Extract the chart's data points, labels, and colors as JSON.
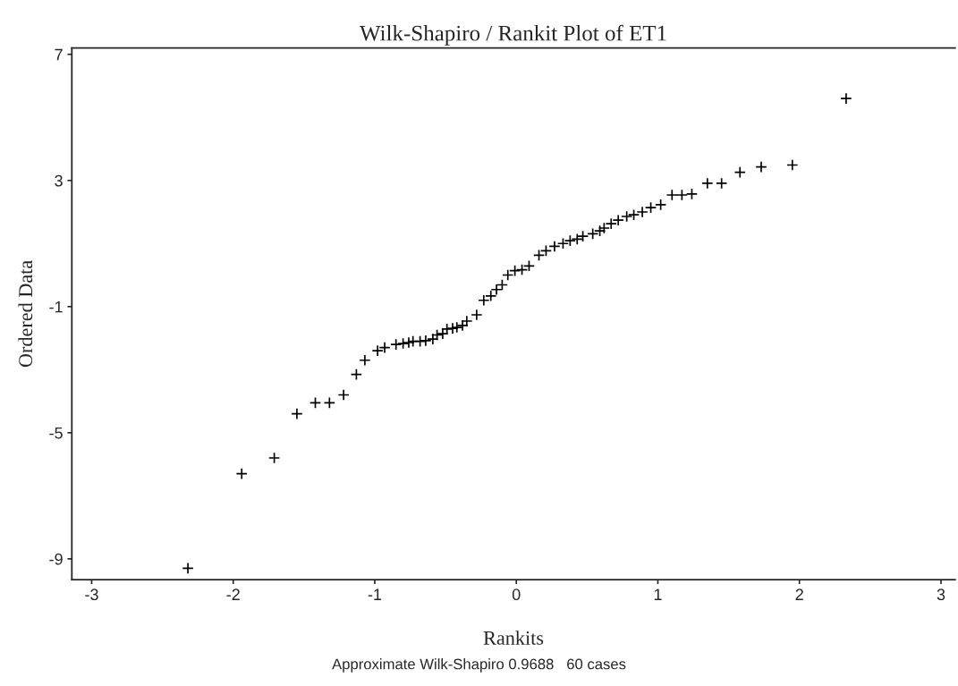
{
  "chart_data": {
    "type": "scatter",
    "title": "Wilk-Shapiro / Rankit Plot of ET1",
    "xlabel": "Rankits",
    "ylabel": "Ordered Data",
    "annotations": [
      "Approximate Wilk-Shapiro 0.9688   60 cases"
    ],
    "marker": "cross",
    "grid": false,
    "xlim": [
      -3.14,
      3.1
    ],
    "xticks": [
      -3,
      -2,
      -1,
      0,
      1,
      2,
      3
    ],
    "ylim": [
      -9.66,
      7.2
    ],
    "yticks": [
      -9,
      -5,
      -1,
      3,
      7
    ],
    "series": [
      {
        "color": "#000000",
        "x": [
          -2.32,
          -1.94,
          -1.71,
          -1.55,
          -1.42,
          -1.32,
          -1.22,
          -1.13,
          -1.07,
          -0.98,
          -0.93,
          -0.85,
          -0.8,
          -0.76,
          -0.73,
          -0.68,
          -0.64,
          -0.59,
          -0.56,
          -0.52,
          -0.49,
          -0.45,
          -0.42,
          -0.38,
          -0.35,
          -0.28,
          -0.23,
          -0.18,
          -0.14,
          -0.1,
          -0.06,
          -0.01,
          0.04,
          0.09,
          0.16,
          0.21,
          0.27,
          0.33,
          0.38,
          0.43,
          0.47,
          0.54,
          0.59,
          0.62,
          0.67,
          0.72,
          0.78,
          0.83,
          0.89,
          0.95,
          1.02,
          1.1,
          1.17,
          1.24,
          1.35,
          1.45,
          1.58,
          1.73,
          1.95,
          2.33
        ],
        "values": [
          -9.3,
          -6.3,
          -5.8,
          -4.4,
          -4.05,
          -4.05,
          -3.8,
          -3.15,
          -2.7,
          -2.4,
          -2.3,
          -2.2,
          -2.17,
          -2.14,
          -2.1,
          -2.1,
          -2.08,
          -2.03,
          -1.9,
          -1.86,
          -1.71,
          -1.69,
          -1.66,
          -1.6,
          -1.46,
          -1.26,
          -0.8,
          -0.66,
          -0.46,
          -0.31,
          0.0,
          0.14,
          0.17,
          0.29,
          0.63,
          0.77,
          0.91,
          1.0,
          1.09,
          1.14,
          1.23,
          1.31,
          1.4,
          1.49,
          1.63,
          1.74,
          1.86,
          1.91,
          2.0,
          2.14,
          2.23,
          2.54,
          2.54,
          2.57,
          2.91,
          2.91,
          3.26,
          3.43,
          3.49,
          5.6
        ]
      }
    ]
  }
}
